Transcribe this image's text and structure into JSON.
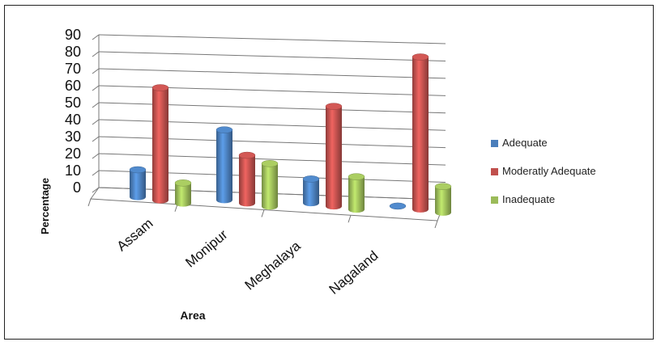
{
  "chart_data": {
    "type": "bar",
    "title": "",
    "xlabel": "Area",
    "ylabel": "Percentage",
    "ylim": [
      0,
      90
    ],
    "yticks": [
      0,
      10,
      20,
      30,
      40,
      50,
      60,
      70,
      80,
      90
    ],
    "grid": true,
    "legend_position": "right",
    "categories": [
      "Assam",
      "Monipur",
      "Meghalaya",
      "Nagaland"
    ],
    "series": [
      {
        "name": "Adequate",
        "color": "#4a7ebb",
        "values": [
          16,
          41,
          14,
          0
        ]
      },
      {
        "name": "Moderatly Adequate",
        "color": "#c0504d",
        "values": [
          66,
          28,
          58,
          88
        ]
      },
      {
        "name": "Inadequate",
        "color": "#9bbb59",
        "values": [
          12,
          25,
          19,
          15
        ]
      }
    ]
  }
}
